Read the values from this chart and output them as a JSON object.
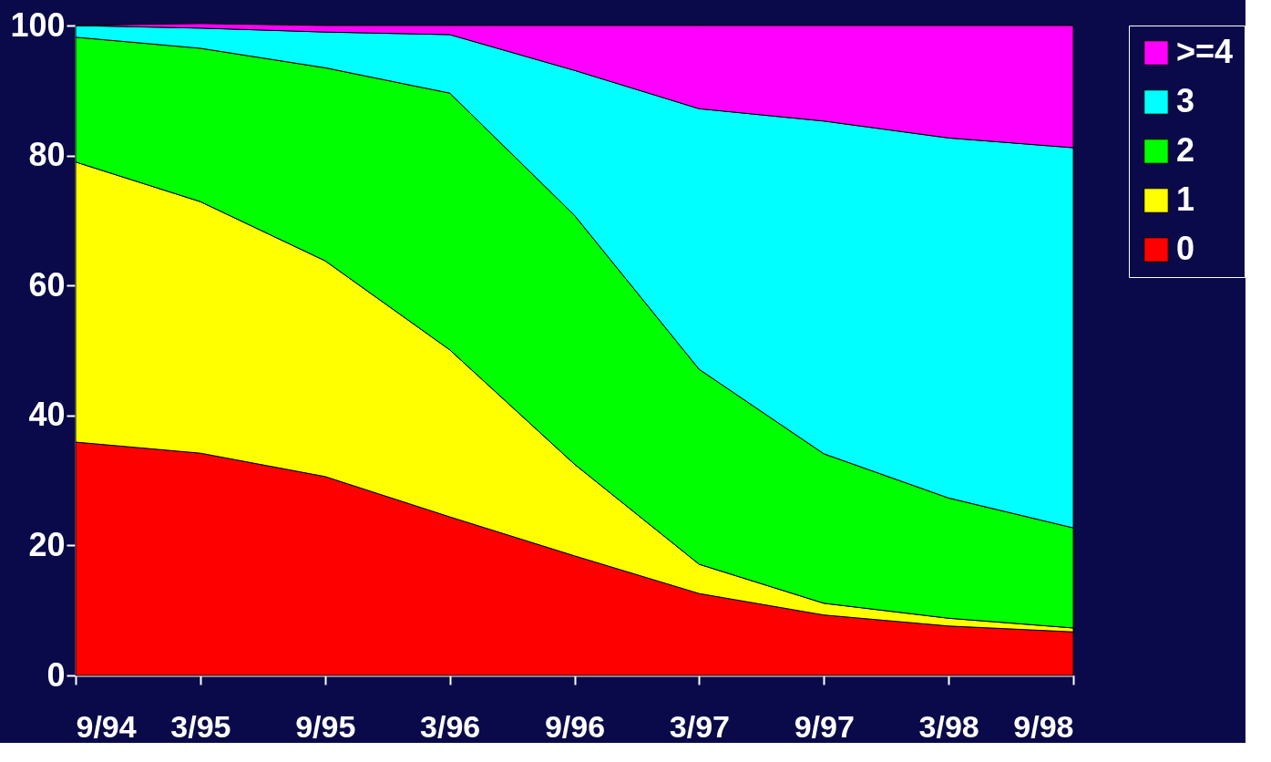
{
  "chart_data": {
    "type": "area",
    "stacked": true,
    "categories": [
      "9/94",
      "3/95",
      "9/95",
      "3/96",
      "9/96",
      "3/97",
      "9/97",
      "3/98",
      "9/98"
    ],
    "series": [
      {
        "name": "0",
        "color": "#ff0000",
        "values": [
          35.9,
          34.2,
          30.6,
          24.4,
          18.4,
          12.6,
          9.3,
          7.6,
          6.7
        ]
      },
      {
        "name": "1",
        "color": "#ffff00",
        "values": [
          43.1,
          38.7,
          33.2,
          25.7,
          14.1,
          4.5,
          1.8,
          1.2,
          0.6
        ]
      },
      {
        "name": "2",
        "color": "#00ff00",
        "values": [
          19.2,
          23.6,
          29.7,
          39.5,
          38.3,
          30.0,
          23.0,
          18.5,
          15.4
        ]
      },
      {
        "name": "3",
        "color": "#00ffff",
        "values": [
          1.8,
          3.1,
          5.5,
          9.0,
          22.3,
          40.1,
          51.2,
          55.4,
          58.5
        ]
      },
      {
        "name": ">=4",
        "color": "#ff00ff",
        "values": [
          0,
          0.7,
          1.0,
          1.4,
          6.9,
          12.8,
          14.7,
          17.3,
          18.8
        ]
      }
    ],
    "ylim": [
      0,
      100
    ],
    "yticks": [
      0,
      20,
      40,
      60,
      80,
      100
    ],
    "grid": false,
    "legend": "right"
  }
}
